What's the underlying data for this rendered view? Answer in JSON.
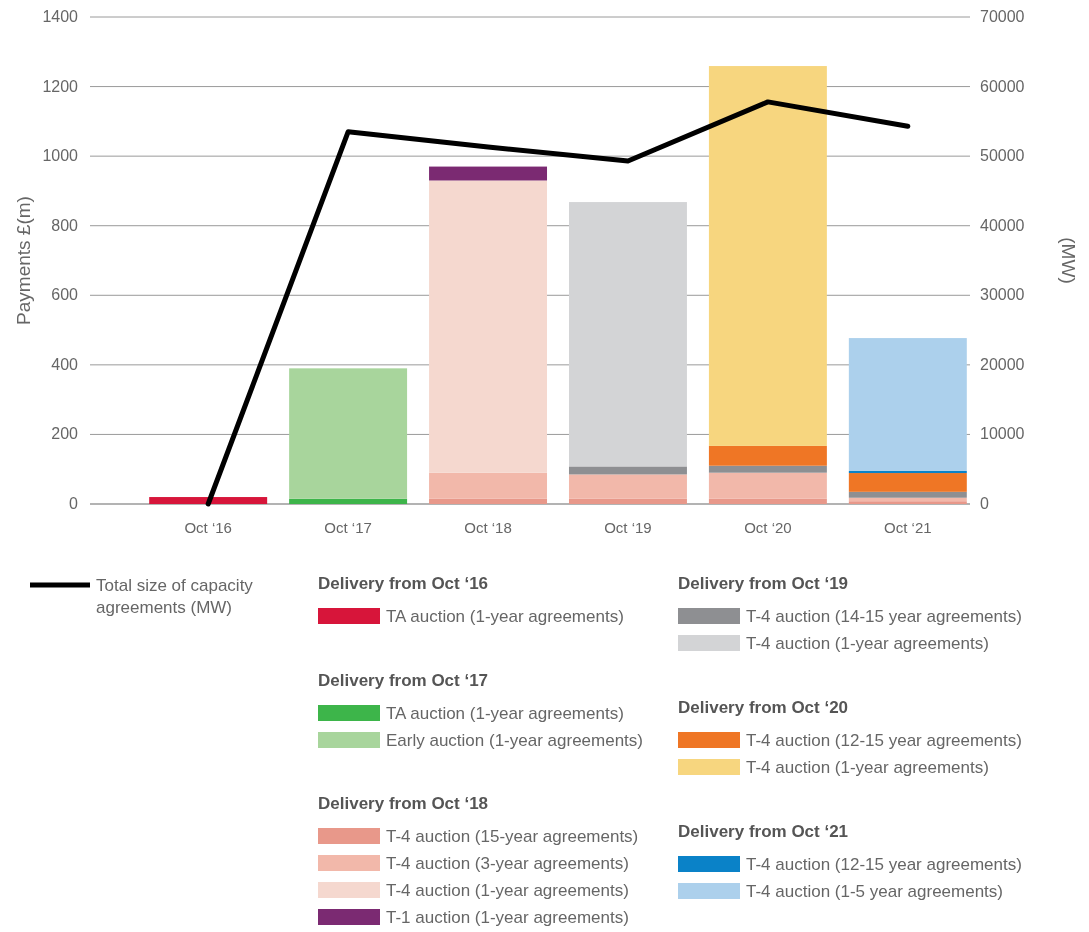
{
  "chart_data": {
    "type": "bar",
    "stacked": true,
    "categories": [
      "Oct ‘16",
      "Oct ‘17",
      "Oct ‘18",
      "Oct ‘19",
      "Oct ‘20",
      "Oct ‘21"
    ],
    "ylabel": "Payments £(m)",
    "y2label": "(MW)",
    "ylim": [
      0,
      1400
    ],
    "yticks": [
      0,
      200,
      400,
      600,
      800,
      1000,
      1200,
      1400
    ],
    "y2lim": [
      0,
      70000
    ],
    "y2ticks": [
      0,
      10000,
      20000,
      30000,
      40000,
      50000,
      60000,
      70000
    ],
    "grid": "y",
    "legend": "bottom",
    "annotations": [
      "Delivery from Oct ‘16",
      "Delivery from Oct ‘17",
      "Delivery from Oct ‘18",
      "Delivery from Oct ‘19",
      "Delivery from Oct ‘20",
      "Delivery from Oct ‘21"
    ],
    "series": [
      {
        "name": "Total size of capacity agreements (MW)",
        "type": "line",
        "axis": "y2",
        "color": "#000000",
        "values": [
          0,
          53500,
          51300,
          49300,
          57800,
          54300
        ]
      },
      {
        "name": "TA auction (1-year agreements)",
        "color": "#d7153a",
        "values": [
          20,
          null,
          null,
          null,
          null,
          null
        ]
      },
      {
        "name": "TA auction (1-year agreements)",
        "color": "#3db54a",
        "values": [
          null,
          15,
          null,
          null,
          null,
          null
        ]
      },
      {
        "name": "Early auction (1-year agreements)",
        "color": "#a8d59c",
        "values": [
          null,
          375,
          null,
          null,
          null,
          null
        ]
      },
      {
        "name": "T-4 auction (15-year agreements)",
        "color": "#e8988a",
        "values": [
          null,
          null,
          15,
          15,
          15,
          8
        ]
      },
      {
        "name": "T-4 auction (3-year agreements)",
        "color": "#f2b8aa",
        "values": [
          null,
          null,
          75,
          70,
          75,
          10
        ]
      },
      {
        "name": "T-4 auction (1-year agreements)",
        "color": "#f5d8cf",
        "values": [
          null,
          null,
          840,
          null,
          null,
          null
        ]
      },
      {
        "name": "T-1 auction (1-year agreements)",
        "color": "#7b2a72",
        "values": [
          null,
          null,
          40,
          null,
          null,
          null
        ]
      },
      {
        "name": "T-4 auction (14-15 year agreements)",
        "color": "#8e8f92",
        "values": [
          null,
          null,
          null,
          23,
          20,
          17
        ]
      },
      {
        "name": "T-4 auction (1-year agreements)",
        "color": "#d3d4d6",
        "values": [
          null,
          null,
          null,
          760,
          null,
          null
        ]
      },
      {
        "name": "T-4 auction (12-15 year agreements)",
        "color": "#ef7625",
        "values": [
          null,
          null,
          null,
          null,
          57,
          54
        ]
      },
      {
        "name": "T-4 auction (1-year agreements)",
        "color": "#f7d67f",
        "values": [
          null,
          null,
          null,
          null,
          1092,
          null
        ]
      },
      {
        "name": "T-4 auction (12-15 year agreements)",
        "color": "#0a82c8",
        "values": [
          null,
          null,
          null,
          null,
          null,
          6
        ]
      },
      {
        "name": "T-4 auction (1-5 year agreements)",
        "color": "#acd0ec",
        "values": [
          null,
          null,
          null,
          null,
          null,
          382
        ]
      }
    ]
  }
}
